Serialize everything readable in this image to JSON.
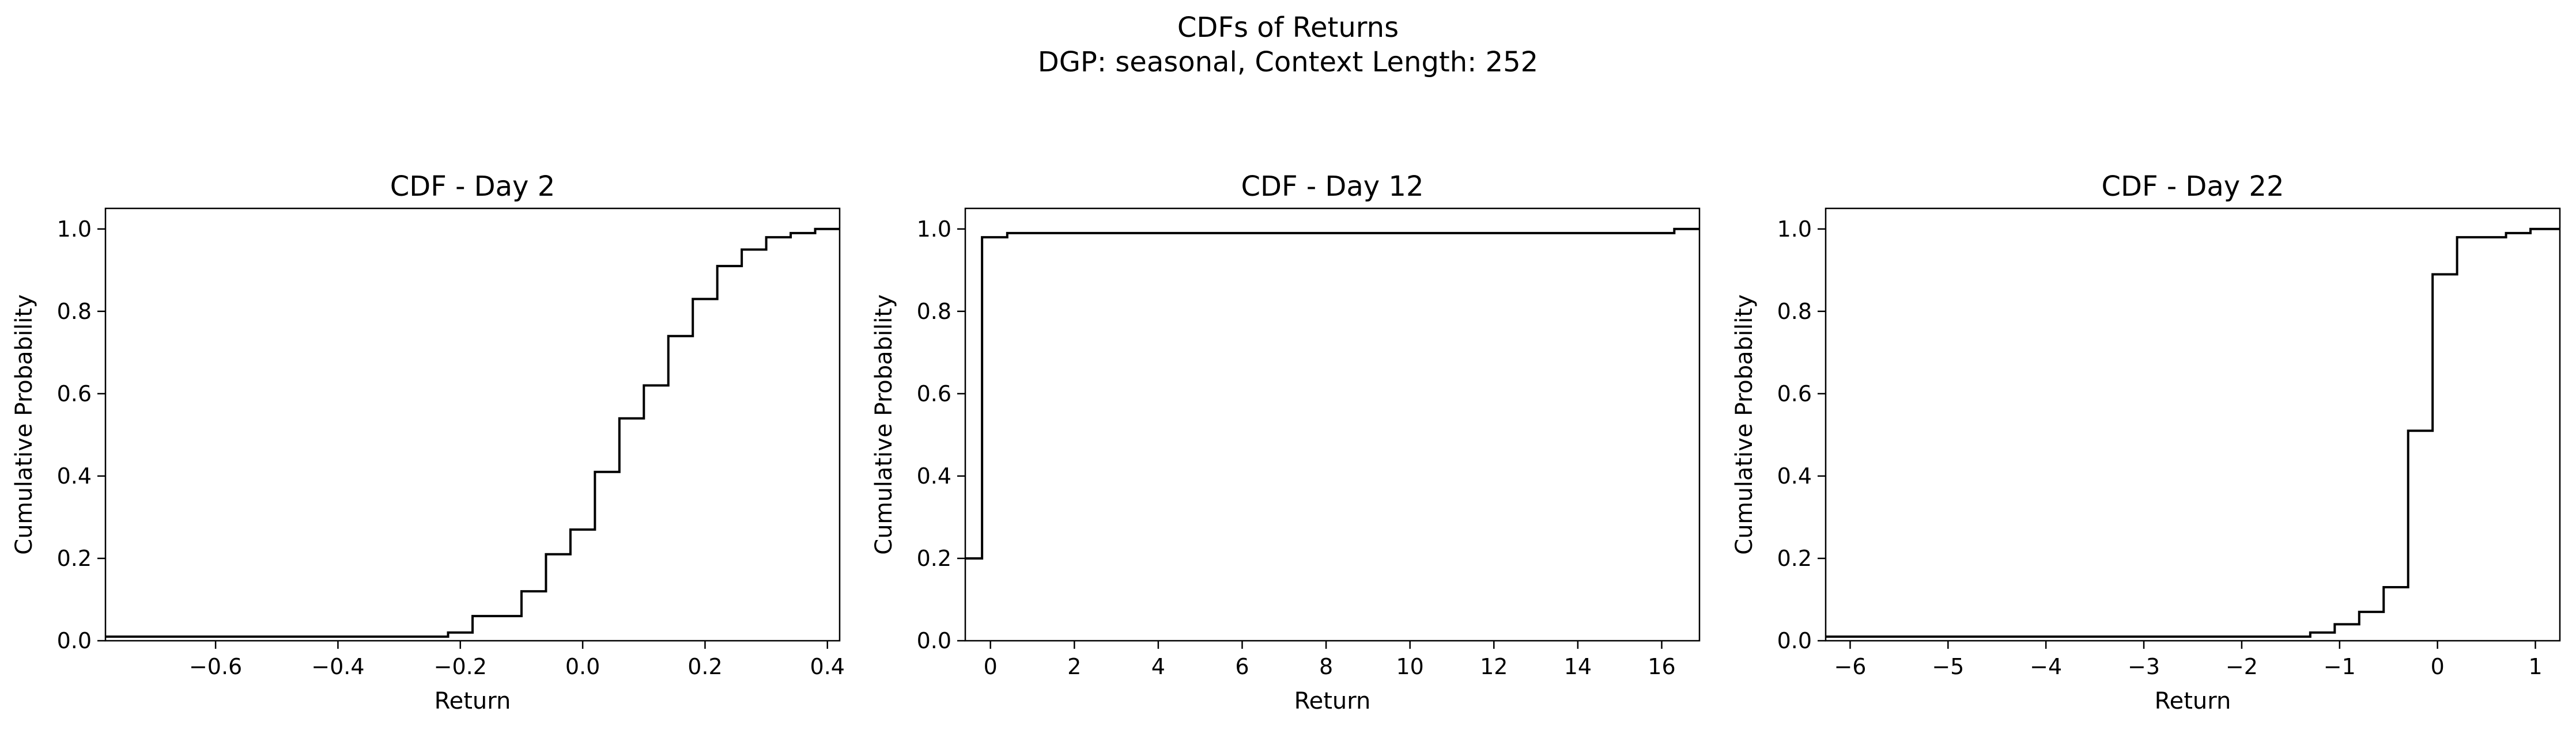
{
  "figure": {
    "suptitle_line1": "CDFs of Returns",
    "suptitle_line2": "DGP: seasonal, Context Length: 252"
  },
  "chart_data": [
    {
      "type": "line",
      "step": "post",
      "title": "CDF - Day 2",
      "xlabel": "Return",
      "ylabel": "Cumulative Probability",
      "xlim": [
        -0.78,
        0.42
      ],
      "ylim": [
        0.0,
        1.05
      ],
      "xticks": [
        -0.6,
        -0.4,
        -0.2,
        0.0,
        0.2,
        0.4
      ],
      "xtick_labels": [
        "−0.6",
        "−0.4",
        "−0.2",
        "0.0",
        "0.2",
        "0.4"
      ],
      "yticks": [
        0.0,
        0.2,
        0.4,
        0.6,
        0.8,
        1.0
      ],
      "ytick_labels": [
        "0.0",
        "0.2",
        "0.4",
        "0.6",
        "0.8",
        "1.0"
      ],
      "color": "#000000",
      "x": [
        -0.78,
        -0.22,
        -0.18,
        -0.1,
        -0.06,
        -0.02,
        0.02,
        0.06,
        0.1,
        0.14,
        0.18,
        0.22,
        0.26,
        0.3,
        0.34,
        0.38,
        0.42
      ],
      "y": [
        0.01,
        0.02,
        0.06,
        0.12,
        0.21,
        0.27,
        0.41,
        0.54,
        0.62,
        0.74,
        0.83,
        0.91,
        0.95,
        0.98,
        0.99,
        1.0,
        1.0
      ]
    },
    {
      "type": "line",
      "step": "post",
      "title": "CDF - Day 12",
      "xlabel": "Return",
      "ylabel": "Cumulative Probability",
      "xlim": [
        -0.6,
        16.9
      ],
      "ylim": [
        0.0,
        1.05
      ],
      "xticks": [
        0,
        2,
        4,
        6,
        8,
        10,
        12,
        14,
        16
      ],
      "xtick_labels": [
        "0",
        "2",
        "4",
        "6",
        "8",
        "10",
        "12",
        "14",
        "16"
      ],
      "yticks": [
        0.0,
        0.2,
        0.4,
        0.6,
        0.8,
        1.0
      ],
      "ytick_labels": [
        "0.0",
        "0.2",
        "0.4",
        "0.6",
        "0.8",
        "1.0"
      ],
      "color": "#000000",
      "x": [
        -0.6,
        -0.2,
        0.4,
        16.3,
        16.9
      ],
      "y": [
        0.2,
        0.98,
        0.99,
        1.0,
        1.0
      ]
    },
    {
      "type": "line",
      "step": "post",
      "title": "CDF - Day 22",
      "xlabel": "Return",
      "ylabel": "Cumulative Probability",
      "xlim": [
        -6.25,
        1.25
      ],
      "ylim": [
        0.0,
        1.05
      ],
      "xticks": [
        -6,
        -5,
        -4,
        -3,
        -2,
        -1,
        0,
        1
      ],
      "xtick_labels": [
        "−6",
        "−5",
        "−4",
        "−3",
        "−2",
        "−1",
        "0",
        "1"
      ],
      "yticks": [
        0.0,
        0.2,
        0.4,
        0.6,
        0.8,
        1.0
      ],
      "ytick_labels": [
        "0.0",
        "0.2",
        "0.4",
        "0.6",
        "0.8",
        "1.0"
      ],
      "color": "#000000",
      "x": [
        -6.25,
        -1.3,
        -1.05,
        -0.8,
        -0.55,
        -0.3,
        -0.05,
        0.2,
        0.45,
        0.7,
        0.95,
        1.25
      ],
      "y": [
        0.01,
        0.02,
        0.04,
        0.07,
        0.13,
        0.51,
        0.89,
        0.98,
        0.98,
        0.99,
        1.0,
        1.0
      ]
    }
  ]
}
